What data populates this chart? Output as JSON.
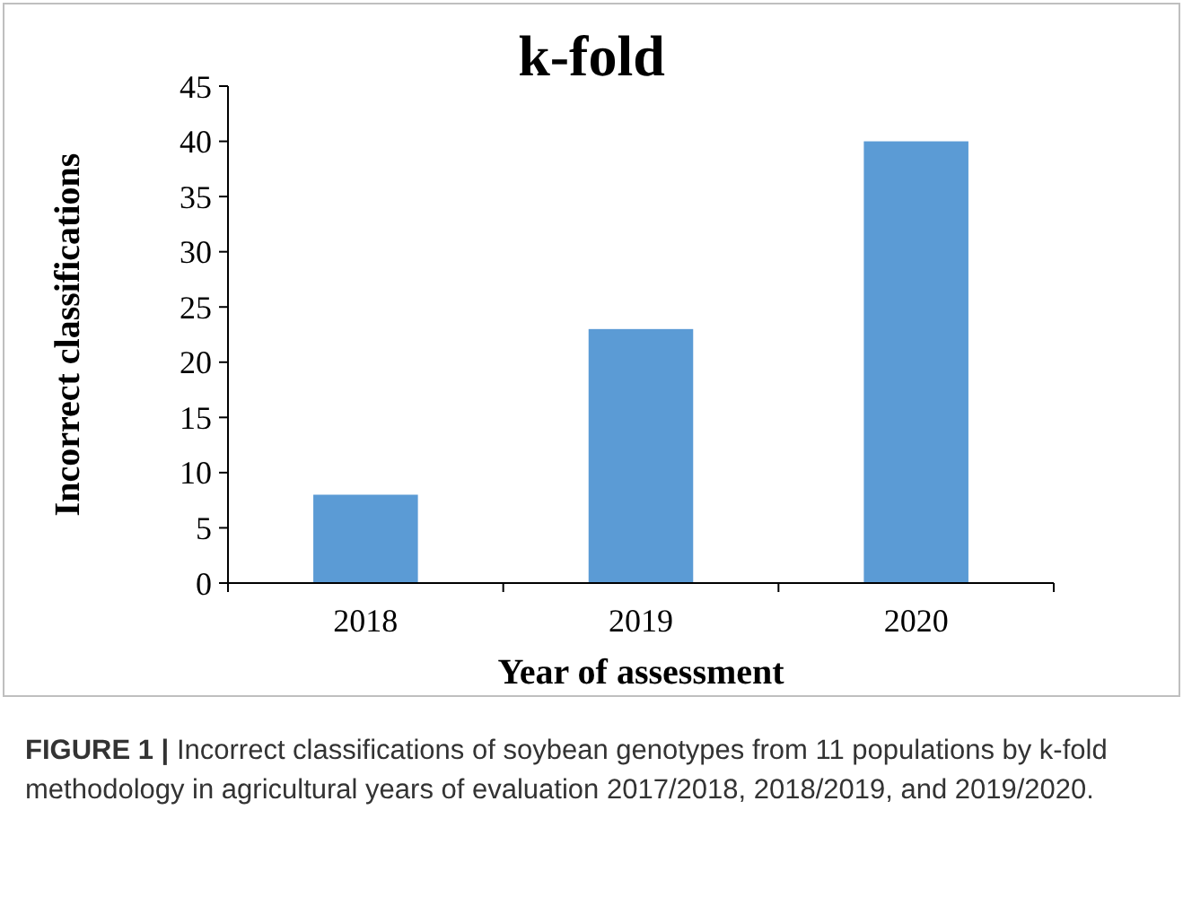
{
  "chart_data": {
    "type": "bar",
    "title": "k-fold",
    "xlabel": "Year of assessment",
    "ylabel": "Incorrect classifications",
    "categories": [
      "2018",
      "2019",
      "2020"
    ],
    "values": [
      8,
      23,
      40
    ],
    "color": "#5b9bd5",
    "ylim": [
      0,
      45
    ],
    "yticks": [
      0,
      5,
      10,
      15,
      20,
      25,
      30,
      35,
      40,
      45
    ],
    "grid": false,
    "annotations": [
      "FIGURE 1 | Incorrect classifications of soybean genotypes from 11 populations by k-fold methodology in agricultural years of evaluation 2017/2018, 2018/2019, and 2019/2020."
    ]
  }
}
